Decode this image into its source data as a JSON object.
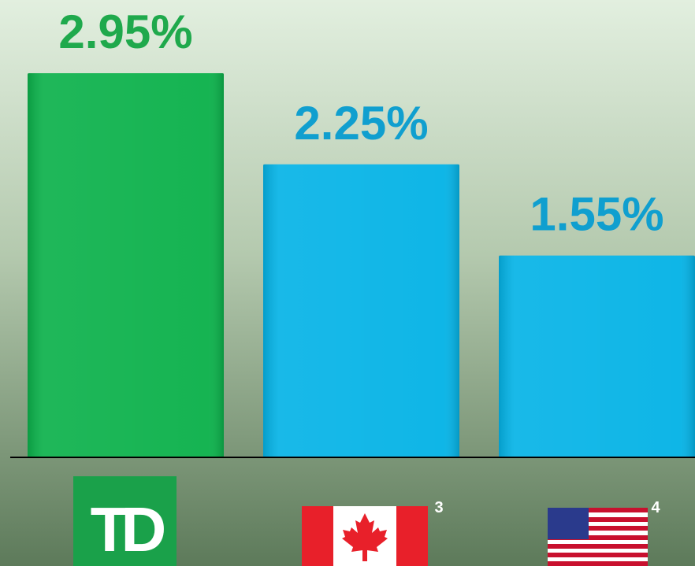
{
  "chart_data": {
    "type": "bar",
    "categories": [
      null,
      null,
      null
    ],
    "values": [
      2.95,
      2.25,
      1.55
    ],
    "value_labels": [
      "2.95%",
      "2.25%",
      "1.55%"
    ],
    "colors": [
      "#0cb14b",
      "#05b3e6",
      "#05b3e6"
    ],
    "label_colors": [
      "#1fa94c",
      "#109fcf",
      "#109fcf"
    ],
    "ylim": [
      0,
      3.5
    ],
    "logo": "TD",
    "footnotes": [
      null,
      "3",
      "4"
    ]
  }
}
